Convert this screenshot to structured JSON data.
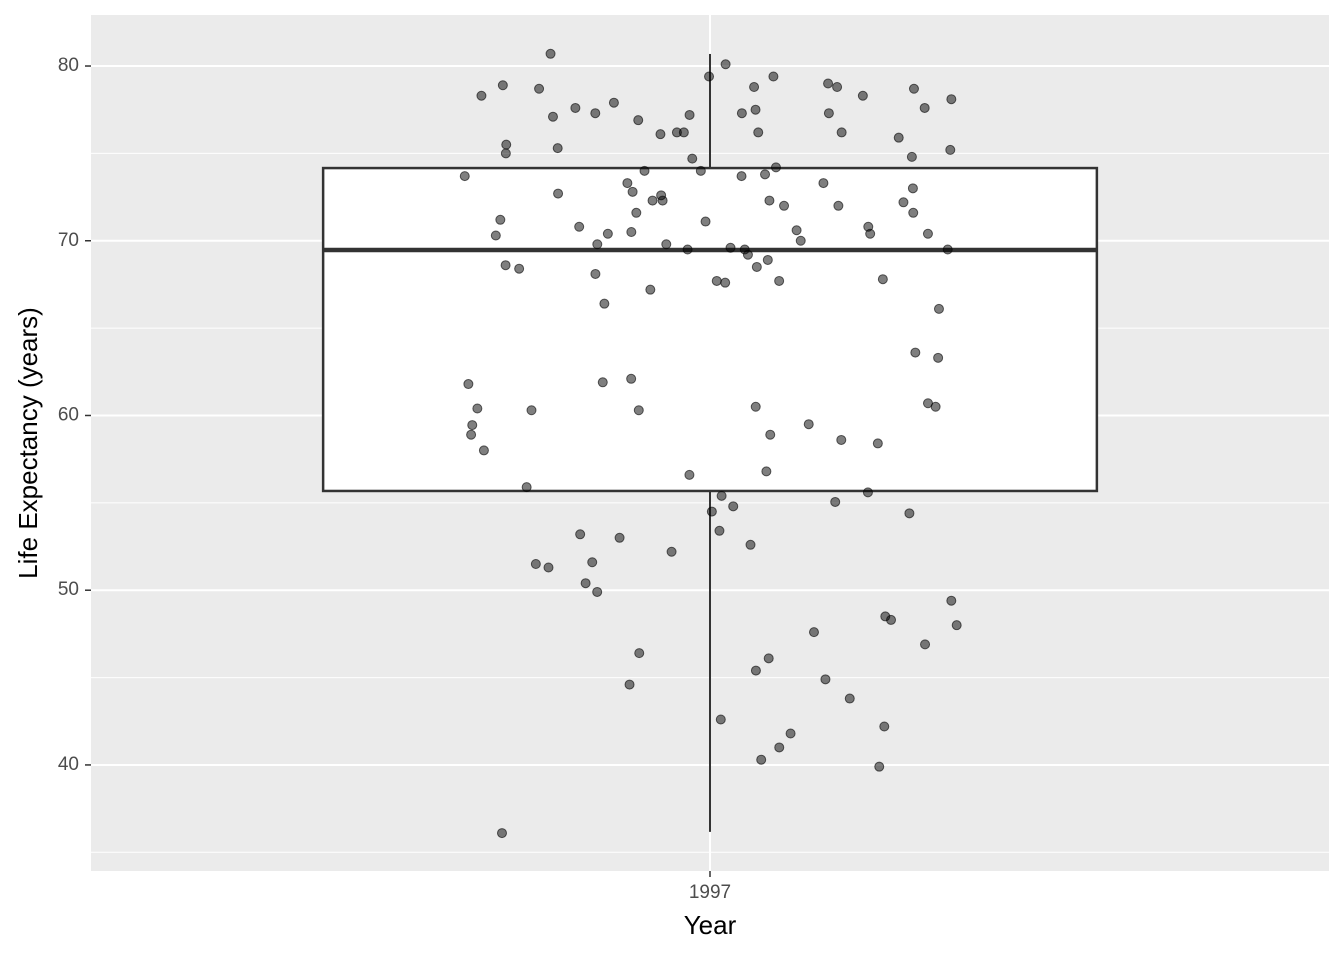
{
  "chart_data": {
    "type": "box",
    "xlabel": "Year",
    "ylabel": "Life Expectancy (years)",
    "categories": [
      "1997"
    ],
    "box": {
      "whislo": 36.17,
      "q1": 55.68,
      "median": 69.47,
      "q3": 74.16,
      "whishi": 80.69
    },
    "values": [
      77.1,
      77.3,
      77.3,
      69.5,
      69.8,
      70.4,
      55.05,
      54.5,
      55.4,
      42.6,
      59.45,
      60.5,
      73.8,
      72.6,
      67.8,
      62.1,
      52.2,
      53.2,
      49.4,
      47.6,
      48.3,
      42.2,
      58.0,
      79.4,
      77.6,
      77.6,
      76.2,
      78.7,
      78.7,
      80.7,
      72.8,
      73.7,
      74.0,
      72.3,
      69.5,
      68.4,
      67.7,
      63.3,
      50.4,
      51.6,
      43.8,
      48.5,
      41.0,
      36.1,
      79.4,
      78.3,
      79.0,
      75.5,
      76.2,
      75.2,
      74.8,
      74.0,
      71.6,
      71.1,
      71.2,
      71.6,
      70.4,
      70.5,
      68.9,
      68.5,
      67.7,
      61.9,
      60.7,
      60.5,
      60.3,
      59.5,
      78.9,
      78.1,
      80.1,
      76.1,
      76.2,
      76.2,
      74.7,
      73.7,
      73.3,
      73.3,
      70.8,
      70.8,
      69.5,
      68.1,
      68.6,
      67.6,
      67.2,
      70.0,
      58.6,
      58.9,
      56.8,
      55.9,
      56.6,
      52.6,
      51.3,
      49.9,
      46.9,
      46.1,
      41.8,
      39.9,
      60.3,
      58.4,
      77.2,
      77.3,
      78.8,
      78.3,
      76.9,
      75.9,
      72.7,
      73.0,
      72.0,
      72.0,
      70.3,
      70.6,
      70.4,
      69.2,
      69.6,
      74.2,
      72.3,
      66.1,
      63.6,
      60.4,
      55.6,
      54.4,
      53.0,
      51.5,
      48.0,
      45.4,
      44.9,
      40.3,
      78.8,
      77.5,
      77.9,
      75.3,
      75.0,
      72.3,
      72.2,
      69.8,
      66.4,
      61.8,
      58.9,
      54.8,
      53.4,
      46.4,
      44.6
    ],
    "ylim": [
      33.93,
      82.92
    ],
    "yticks": [
      40,
      50,
      60,
      70,
      80
    ],
    "yminor": [
      35,
      45,
      55,
      65,
      75
    ],
    "grid": true,
    "point_color": "#000000",
    "panel_color": "#ebebeb"
  }
}
